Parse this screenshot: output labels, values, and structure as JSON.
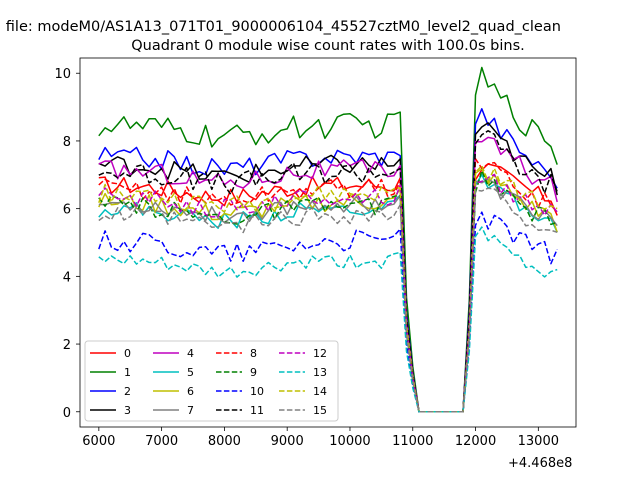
{
  "figure": {
    "suptitle": "n file: modeM0/AS1A13_071T01_9000006104_45527cztM0_level2_quad_clean",
    "title": "Quadrant 0 module wise count rates with 100.0s bins.",
    "x_offset_label": "+4.468e8"
  },
  "chart_data": {
    "type": "line",
    "title": "Quadrant 0 module wise count rates with 100.0s bins.",
    "xlabel": "",
    "ylabel": "",
    "x_offset": 446800000,
    "xlim": [
      5700,
      13600
    ],
    "ylim": [
      -0.45,
      10.45
    ],
    "xticks": [
      6000,
      7000,
      8000,
      9000,
      10000,
      11000,
      12000,
      13000
    ],
    "yticks": [
      0,
      2,
      4,
      6,
      8,
      10
    ],
    "legend_location": "lower left",
    "legend_columns": 4,
    "gap": {
      "drop_start": 10900,
      "zero_start": 11100,
      "zero_end": 11800,
      "rise_end": 12000
    },
    "x_range": [
      6000,
      13300
    ],
    "bin_seconds": 100,
    "series": [
      {
        "name": "0",
        "color": "#ff0000",
        "dash": "solid",
        "mean": 6.7,
        "noise": 0.28,
        "pre_final": 6.85,
        "post_peak": 7.4,
        "final": 5.8
      },
      {
        "name": "1",
        "color": "#008000",
        "dash": "solid",
        "mean": 8.45,
        "noise": 0.38,
        "pre_final": 8.9,
        "post_peak": 10.0,
        "final": 7.3
      },
      {
        "name": "2",
        "color": "#0000ff",
        "dash": "solid",
        "mean": 7.55,
        "noise": 0.3,
        "pre_final": 7.7,
        "post_peak": 9.0,
        "final": 6.6
      },
      {
        "name": "3",
        "color": "#000000",
        "dash": "solid",
        "mean": 7.3,
        "noise": 0.3,
        "pre_final": 7.4,
        "post_peak": 8.6,
        "final": 6.4
      },
      {
        "name": "4",
        "color": "#bf00bf",
        "dash": "solid",
        "mean": 7.15,
        "noise": 0.3,
        "pre_final": 7.3,
        "post_peak": 8.3,
        "final": 6.2
      },
      {
        "name": "5",
        "color": "#00bfbf",
        "dash": "solid",
        "mean": 6.0,
        "noise": 0.25,
        "pre_final": 6.5,
        "post_peak": 6.9,
        "final": 5.3
      },
      {
        "name": "6",
        "color": "#bfbf00",
        "dash": "solid",
        "mean": 6.2,
        "noise": 0.28,
        "pre_final": 6.5,
        "post_peak": 7.2,
        "final": 5.3
      },
      {
        "name": "7",
        "color": "#808080",
        "dash": "solid",
        "mean": 6.15,
        "noise": 0.25,
        "pre_final": 6.4,
        "post_peak": 6.9,
        "final": 5.5
      },
      {
        "name": "8",
        "color": "#ff0000",
        "dash": "dashed",
        "mean": 6.6,
        "noise": 0.3,
        "pre_final": 6.9,
        "post_peak": 7.5,
        "final": 5.9
      },
      {
        "name": "9",
        "color": "#008000",
        "dash": "dashed",
        "mean": 6.1,
        "noise": 0.28,
        "pre_final": 6.3,
        "post_peak": 7.0,
        "final": 5.6
      },
      {
        "name": "10",
        "color": "#0000ff",
        "dash": "dashed",
        "mean": 5.05,
        "noise": 0.32,
        "pre_final": 5.4,
        "post_peak": 5.9,
        "final": 4.8
      },
      {
        "name": "11",
        "color": "#000000",
        "dash": "dashed",
        "mean": 7.1,
        "noise": 0.35,
        "pre_final": 7.3,
        "post_peak": 8.4,
        "final": 6.5
      },
      {
        "name": "12",
        "color": "#bf00bf",
        "dash": "dashed",
        "mean": 6.35,
        "noise": 0.28,
        "pre_final": 6.6,
        "post_peak": 7.1,
        "final": 5.9
      },
      {
        "name": "13",
        "color": "#00bfbf",
        "dash": "dashed",
        "mean": 4.45,
        "noise": 0.22,
        "pre_final": 4.7,
        "post_peak": 5.4,
        "final": 4.2
      },
      {
        "name": "14",
        "color": "#bfbf00",
        "dash": "dashed",
        "mean": 6.45,
        "noise": 0.28,
        "pre_final": 6.7,
        "post_peak": 7.3,
        "final": 6.0
      },
      {
        "name": "15",
        "color": "#808080",
        "dash": "dashed",
        "mean": 5.8,
        "noise": 0.28,
        "pre_final": 6.0,
        "post_peak": 6.7,
        "final": 5.3
      }
    ]
  }
}
